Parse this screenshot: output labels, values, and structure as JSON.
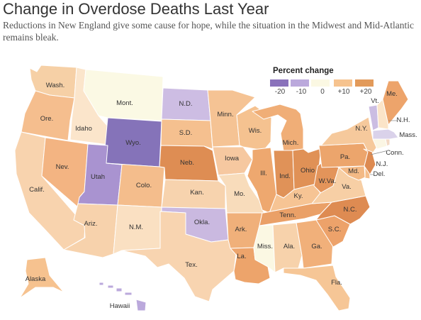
{
  "title": "Change in Overdose Deaths Last Year",
  "subtitle": "Reductions in New England give some cause for hope, while the situation in the Midwest and Mid-Atlantic remains bleak.",
  "legend": {
    "title": "Percent change",
    "ticks": [
      "-20",
      "-10",
      "0",
      "+10",
      "+20"
    ],
    "colors": [
      "#8a72bb",
      "#bba9dc",
      "#fbf8e3",
      "#f6c38f",
      "#e29a5a"
    ]
  },
  "states": [
    {
      "id": "WA",
      "label": "Wash.",
      "color": "#f6d0a6"
    },
    {
      "id": "OR",
      "label": "Ore.",
      "color": "#f5be8e"
    },
    {
      "id": "CA",
      "label": "Calif.",
      "color": "#f8d3ae"
    },
    {
      "id": "ID",
      "label": "Idaho",
      "color": "#fbe5cb"
    },
    {
      "id": "NV",
      "label": "Nev.",
      "color": "#f3b482"
    },
    {
      "id": "MT",
      "label": "Mont.",
      "color": "#fbf9e4"
    },
    {
      "id": "WY",
      "label": "Wyo.",
      "color": "#8573b9"
    },
    {
      "id": "UT",
      "label": "Utah",
      "color": "#a993d0"
    },
    {
      "id": "AZ",
      "label": "Ariz.",
      "color": "#f7d2ac"
    },
    {
      "id": "CO",
      "label": "Colo.",
      "color": "#f4bd8c"
    },
    {
      "id": "NM",
      "label": "N.M.",
      "color": "#fae0c2"
    },
    {
      "id": "ND",
      "label": "N.D.",
      "color": "#cdbde3"
    },
    {
      "id": "SD",
      "label": "S.D.",
      "color": "#f5c08f"
    },
    {
      "id": "NE",
      "label": "Neb.",
      "color": "#de8d53"
    },
    {
      "id": "KS",
      "label": "Kan.",
      "color": "#f7d3ae"
    },
    {
      "id": "OK",
      "label": "Okla.",
      "color": "#cab9e0"
    },
    {
      "id": "TX",
      "label": "Tex.",
      "color": "#f8d4b0"
    },
    {
      "id": "MN",
      "label": "Minn.",
      "color": "#f5c394"
    },
    {
      "id": "IA",
      "label": "Iowa",
      "color": "#f6c8a0"
    },
    {
      "id": "MO",
      "label": "Mo.",
      "color": "#f8dcbb"
    },
    {
      "id": "AR",
      "label": "Ark.",
      "color": "#f0b07a"
    },
    {
      "id": "LA",
      "label": "La.",
      "color": "#eda46b"
    },
    {
      "id": "WI",
      "label": "Wis.",
      "color": "#f5c290"
    },
    {
      "id": "IL",
      "label": "Ill.",
      "color": "#eea86f"
    },
    {
      "id": "MS",
      "label": "Miss.",
      "color": "#fbf8e3"
    },
    {
      "id": "MI",
      "label": "Mich.",
      "color": "#f0ae77"
    },
    {
      "id": "IN",
      "label": "Ind.",
      "color": "#e09258"
    },
    {
      "id": "KY",
      "label": "Ky.",
      "color": "#f6c494"
    },
    {
      "id": "TN",
      "label": "Tenn.",
      "color": "#eaa067"
    },
    {
      "id": "AL",
      "label": "Ala.",
      "color": "#f7d2ab"
    },
    {
      "id": "OH",
      "label": "Ohio",
      "color": "#e09156"
    },
    {
      "id": "WV",
      "label": "W.Va.",
      "color": "#e3945a"
    },
    {
      "id": "GA",
      "label": "Ga.",
      "color": "#f1b07a"
    },
    {
      "id": "FL",
      "label": "Fla.",
      "color": "#f6c696"
    },
    {
      "id": "SC",
      "label": "S.C.",
      "color": "#eda26a"
    },
    {
      "id": "NC",
      "label": "N.C.",
      "color": "#de8b52"
    },
    {
      "id": "VA",
      "label": "Va.",
      "color": "#f7cfa5"
    },
    {
      "id": "PA",
      "label": "Pa.",
      "color": "#eca56c"
    },
    {
      "id": "NY",
      "label": "N.Y.",
      "color": "#f6c99c"
    },
    {
      "id": "MD",
      "label": "Md.",
      "color": "#f3b985"
    },
    {
      "id": "DE",
      "label": "Del.",
      "color": "#f4bd8a"
    },
    {
      "id": "NJ",
      "label": "N.J.",
      "color": "#dd8a51"
    },
    {
      "id": "CT",
      "label": "Conn.",
      "color": "#fbf6e4"
    },
    {
      "id": "MA",
      "label": "Mass.",
      "color": "#dad2ea"
    },
    {
      "id": "VT",
      "label": "Vt.",
      "color": "#cbbde2"
    },
    {
      "id": "NH",
      "label": "N.H.",
      "color": "#fbe4c8"
    },
    {
      "id": "ME",
      "label": "Me.",
      "color": "#eda46b"
    },
    {
      "id": "RI",
      "label": "",
      "color": "#f3d9c4"
    },
    {
      "id": "AK",
      "label": "Alaska",
      "color": "#f6c28f"
    },
    {
      "id": "HI",
      "label": "Hawaii",
      "color": "#bba9dc"
    }
  ]
}
